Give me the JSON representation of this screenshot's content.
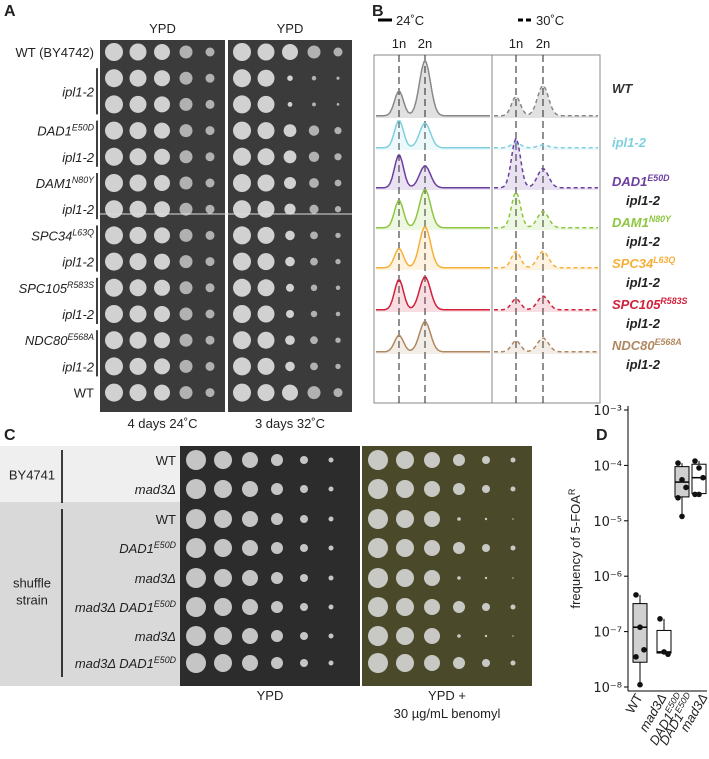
{
  "panel_labels": [
    "A",
    "B",
    "C",
    "D"
  ],
  "panel_a": {
    "plate_titles": [
      "YPD",
      "YPD"
    ],
    "rows": [
      {
        "name": "WT (BY4742)",
        "italic": false
      },
      {
        "name": "ipl1-2"
      },
      {
        "name": "DAD1",
        "sup": "E50D"
      },
      {
        "name": "ipl1-2"
      },
      {
        "name": "DAM1",
        "sup": "N80Y"
      },
      {
        "name": "ipl1-2"
      },
      {
        "name": "SPC34",
        "sup": "L63Q"
      },
      {
        "name": "ipl1-2"
      },
      {
        "name": "SPC105",
        "sup": "R583S"
      },
      {
        "name": "ipl1-2"
      },
      {
        "name": "NDC80",
        "sup": "E568A"
      },
      {
        "name": "ipl1-2"
      },
      {
        "name": "WT",
        "italic": false
      }
    ],
    "conditions": [
      "4 days 24˚C",
      "3 days 32˚C"
    ]
  },
  "panel_b": {
    "legend": [
      {
        "label": "24˚C",
        "style": "solid"
      },
      {
        "label": "30˚C",
        "style": "dashed"
      }
    ],
    "peak_labels": [
      "1n",
      "2n"
    ],
    "strains": [
      {
        "name": "WT",
        "color": "#333333"
      },
      {
        "name": "ipl1-2",
        "color": "#7fcfdf"
      },
      {
        "name": "DAD1",
        "sup": "E50D",
        "line2": "ipl1-2",
        "color": "#6b3fa0"
      },
      {
        "name": "DAM1",
        "sup": "N80Y",
        "line2": "ipl1-2",
        "color": "#8dc63f"
      },
      {
        "name": "SPC34",
        "sup": "L63Q",
        "line2": "ipl1-2",
        "color": "#f5b038"
      },
      {
        "name": "SPC105",
        "sup": "R583S",
        "line2": "ipl1-2",
        "color": "#d0203a"
      },
      {
        "name": "NDC80",
        "sup": "E568A",
        "line2": "ipl1-2",
        "color": "#b08860"
      }
    ]
  },
  "panel_c": {
    "groups": [
      {
        "lines": [
          "BY4741"
        ],
        "rows": [
          [
            {
              "name": "WT",
              "italic": false
            }
          ],
          [
            {
              "name": "mad3Δ"
            }
          ]
        ]
      },
      {
        "lines": [
          "shuffle",
          "strain"
        ],
        "rows": [
          [
            {
              "name": "WT",
              "italic": false
            }
          ],
          [
            {
              "name": "DAD1",
              "sup": "E50D"
            }
          ],
          [
            {
              "name": "mad3Δ"
            }
          ],
          [
            {
              "name": "mad3Δ"
            },
            {
              "name": "DAD1",
              "sup": "E50D"
            }
          ],
          [
            {
              "name": "mad3Δ"
            }
          ],
          [
            {
              "name": "mad3Δ"
            },
            {
              "name": "DAD1",
              "sup": "E50D"
            }
          ]
        ]
      }
    ],
    "plate_captions": [
      [
        "YPD"
      ],
      [
        "YPD +",
        "30 µg/mL benomyl"
      ]
    ]
  },
  "chart_data": {
    "type": "box",
    "ylabel": "frequency of 5-FOA",
    "ylabel_sup": "R",
    "log_scale": true,
    "categories": [
      {
        "name": "WT",
        "italic": false
      },
      {
        "name": "mad3Δ"
      },
      {
        "name": "DAD1",
        "sup": "E50D"
      },
      {
        "name": "DAD1",
        "sup": "E50D",
        "line2": "mad3Δ"
      }
    ],
    "box_colors": [
      "#d0d0d0",
      "#ffffff",
      "#d0d0d0",
      "#ffffff"
    ],
    "point_color": "#111111",
    "boxes": [
      {
        "min": 1.1e-08,
        "q1": 2.8e-08,
        "median": 1.2e-07,
        "q3": 3.2e-07,
        "max": 4.6e-07,
        "points": [
          4.6e-07,
          1.2e-07,
          4.7e-08,
          3.5e-08,
          1.1e-08
        ]
      },
      {
        "min": 3.9e-08,
        "q1": 4.1e-08,
        "median": 4.3e-08,
        "q3": 1.05e-07,
        "max": 1.7e-07,
        "points": [
          1.7e-07,
          4.3e-08,
          3.9e-08
        ]
      },
      {
        "min": 1.2e-05,
        "q1": 2.7e-05,
        "median": 5e-05,
        "q3": 9.5e-05,
        "max": 0.00011,
        "points": [
          0.00011,
          5.5e-05,
          4e-05,
          2.6e-05,
          1.2e-05
        ]
      },
      {
        "min": 3e-05,
        "q1": 3.1e-05,
        "median": 6e-05,
        "q3": 0.000105,
        "max": 0.00012,
        "points": [
          0.00012,
          9e-05,
          6e-05,
          3e-05,
          3e-05
        ]
      }
    ],
    "ylim": [
      1e-08,
      0.001
    ],
    "yticks": [
      {
        "value": 1e-08,
        "label": "10⁻⁸"
      },
      {
        "value": 1e-07,
        "label": "10⁻⁷"
      },
      {
        "value": 1e-06,
        "label": "10⁻⁶"
      },
      {
        "value": 1e-05,
        "label": "10⁻⁵"
      },
      {
        "value": 0.0001,
        "label": "10⁻⁴"
      },
      {
        "value": 0.001,
        "label": "10⁻³"
      }
    ]
  }
}
